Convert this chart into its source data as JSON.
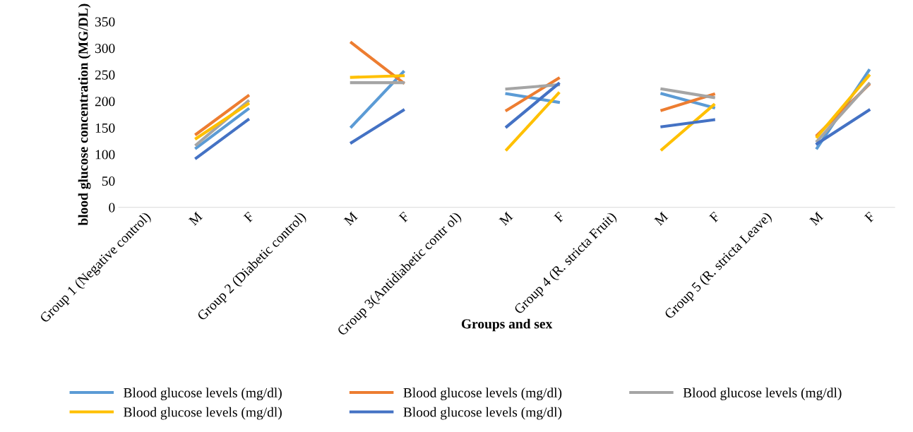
{
  "chart_data": {
    "type": "line",
    "xlabel": "Groups and sex",
    "ylabel": "blood glucose concentration (MG/DL)",
    "categories": [
      "Group 1 (Negative control)",
      "M",
      "F",
      "Group 2 (Diabetic control)",
      "M",
      "F",
      "Group 3(Antidiabetic contr ol)",
      "M",
      "F",
      "Group 4 (R. stricta Fruit)",
      "M",
      "F",
      "Group 5 (R. stricta Leave)",
      "M",
      "F"
    ],
    "series": [
      {
        "name": "Blood glucose levels (mg/dl)",
        "color": "#5b9bd5",
        "values": [
          null,
          112,
          185,
          null,
          152,
          255,
          null,
          214,
          198,
          null,
          214,
          188,
          null,
          112,
          258
        ]
      },
      {
        "name": "Blood glucose levels (mg/dl)",
        "color": "#ed7d31",
        "values": [
          null,
          138,
          210,
          null,
          310,
          235,
          null,
          183,
          243,
          null,
          183,
          213,
          null,
          136,
          231
        ]
      },
      {
        "name": "Blood glucose levels (mg/dl)",
        "color": "#a5a5a5",
        "values": [
          null,
          118,
          200,
          null,
          235,
          235,
          null,
          223,
          231,
          null,
          223,
          207,
          null,
          125,
          233
        ]
      },
      {
        "name": "Blood glucose levels (mg/dl)",
        "color": "#ffc000",
        "values": [
          null,
          130,
          195,
          null,
          245,
          248,
          null,
          109,
          215,
          null,
          109,
          193,
          null,
          133,
          248
        ]
      },
      {
        "name": "Blood glucose levels (mg/dl)",
        "color": "#4472c4",
        "values": [
          null,
          93,
          165,
          null,
          122,
          183,
          null,
          152,
          233,
          null,
          152,
          165,
          null,
          120,
          183
        ]
      }
    ],
    "ylim": [
      0,
      350
    ],
    "yticks": [
      0,
      50,
      100,
      150,
      200,
      250,
      300,
      350
    ],
    "grid": false,
    "legend": "bottom",
    "marker": "none",
    "line_style": "solid"
  }
}
